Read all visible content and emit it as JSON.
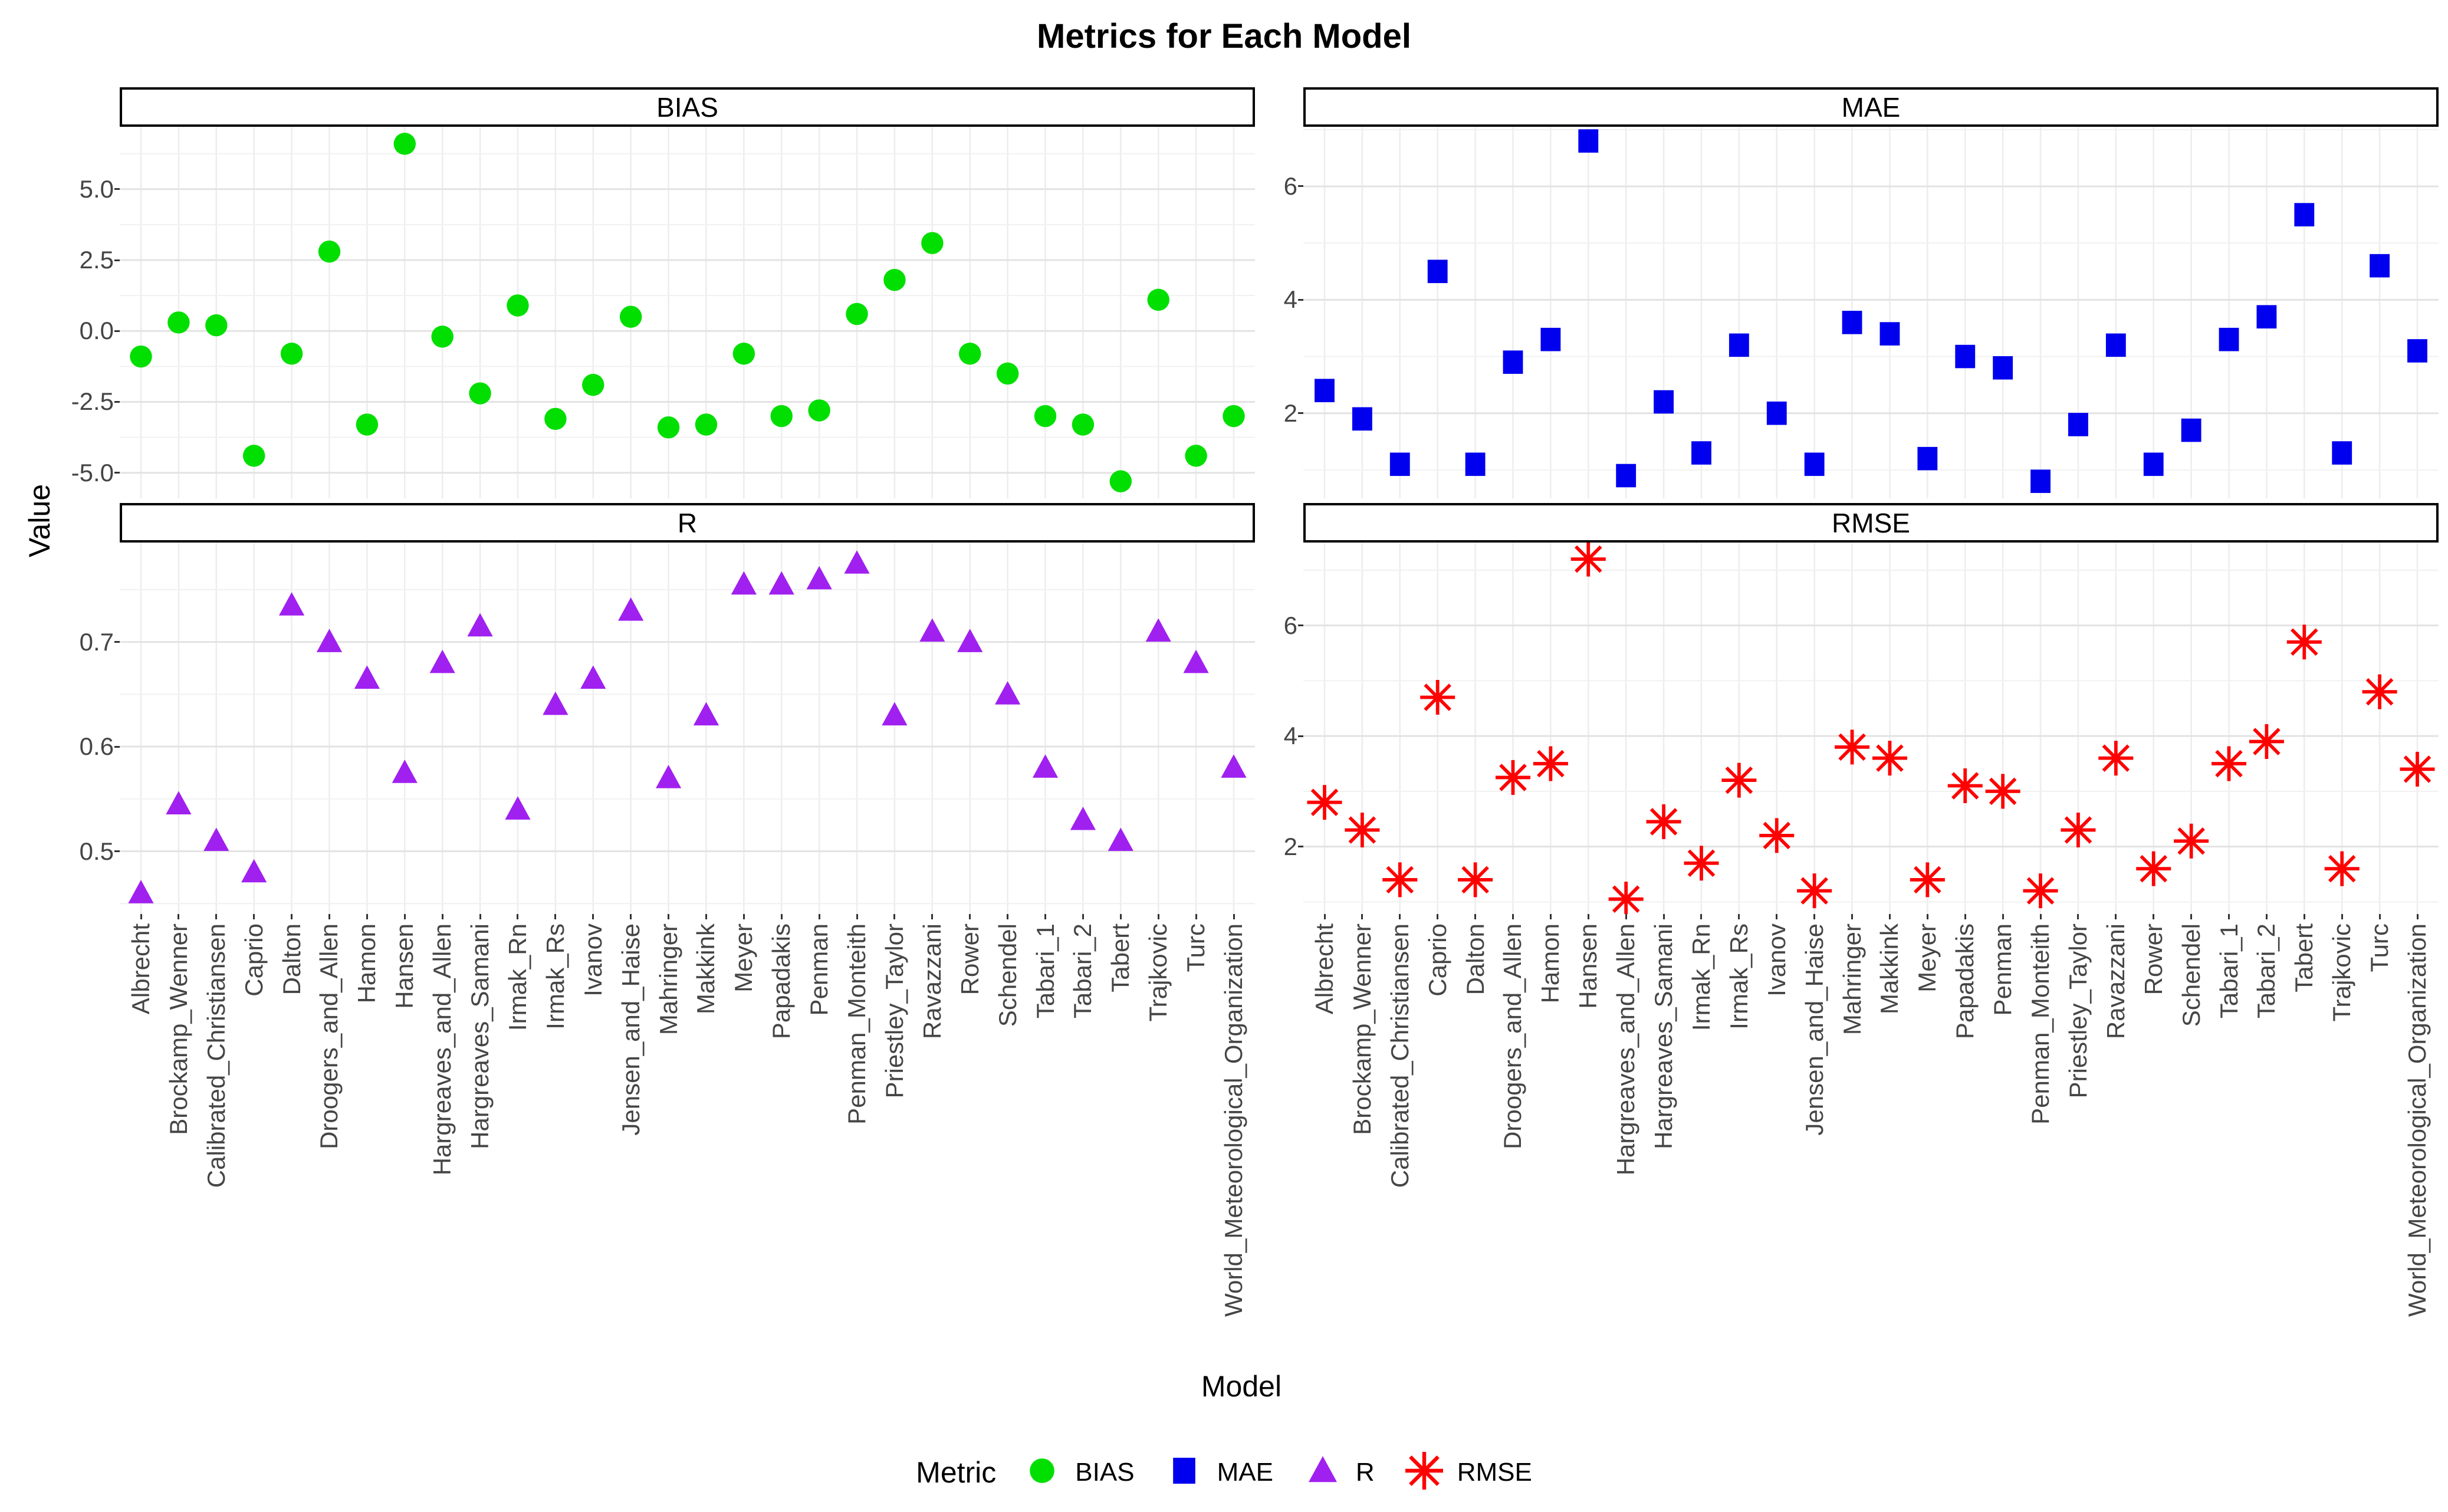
{
  "title": "Metrics for Each Model",
  "axis_titles": {
    "x": "Model",
    "y": "Value"
  },
  "legend": {
    "title": "Metric",
    "items": [
      {
        "label": "BIAS",
        "marker": "circle",
        "color": "#00DF00"
      },
      {
        "label": "MAE",
        "marker": "square",
        "color": "#0000EE"
      },
      {
        "label": "R",
        "marker": "triangle",
        "color": "#A020F0"
      },
      {
        "label": "RMSE",
        "marker": "asterisk",
        "color": "#FF0000"
      }
    ]
  },
  "chart_data": {
    "type": "scatter",
    "facet_layout": "2x2",
    "grid": "on",
    "legend_position": "bottom",
    "xlabel": "Model",
    "ylabel": "Value",
    "categories": [
      "Albrecht",
      "Brockamp_Wenner",
      "Calibrated_Christiansen",
      "Caprio",
      "Dalton",
      "Droogers_and_Allen",
      "Hamon",
      "Hansen",
      "Hargreaves_and_Allen",
      "Hargreaves_Samani",
      "Irmak_Rn",
      "Irmak_Rs",
      "Ivanov",
      "Jensen_and_Haise",
      "Mahringer",
      "Makkink",
      "Meyer",
      "Papadakis",
      "Penman",
      "Penman_Monteith",
      "Priestley_Taylor",
      "Ravazzani",
      "Rower",
      "Schendel",
      "Tabari_1",
      "Tabari_2",
      "Tabert",
      "Trajkovic",
      "Turc",
      "World_Meteorological_Organization"
    ],
    "panels": [
      {
        "name": "BIAS",
        "marker": "circle",
        "color": "#00DF00",
        "ylim": [
          -5.9,
          7.2
        ],
        "yticks": [
          {
            "v": 5.0,
            "label": "5.0"
          },
          {
            "v": 2.5,
            "label": "2.5"
          },
          {
            "v": 0.0,
            "label": "0.0"
          },
          {
            "v": -2.5,
            "label": "-2.5"
          },
          {
            "v": -5.0,
            "label": "-5.0"
          }
        ],
        "yminor": [
          6.25,
          3.75,
          1.25,
          -1.25,
          -3.75
        ],
        "values": [
          -0.9,
          0.3,
          0.2,
          -4.4,
          -0.8,
          2.8,
          -3.3,
          6.6,
          -0.2,
          -2.2,
          0.9,
          -3.1,
          -1.9,
          0.5,
          -3.4,
          -3.3,
          -0.8,
          -3.0,
          -2.8,
          0.6,
          1.8,
          3.1,
          -0.8,
          -1.5,
          -3.0,
          -3.3,
          -5.3,
          1.1,
          -4.4,
          -3.0
        ]
      },
      {
        "name": "MAE",
        "marker": "square",
        "color": "#0000EE",
        "ylim": [
          0.5,
          7.05
        ],
        "yticks": [
          {
            "v": 6,
            "label": "6"
          },
          {
            "v": 4,
            "label": "4"
          },
          {
            "v": 2,
            "label": "2"
          }
        ],
        "yminor": [
          7,
          5,
          3,
          1
        ],
        "values": [
          2.4,
          1.9,
          1.1,
          4.5,
          1.1,
          2.9,
          3.3,
          6.8,
          0.9,
          2.2,
          1.3,
          3.2,
          2.0,
          1.1,
          3.6,
          3.4,
          1.2,
          3.0,
          2.8,
          0.8,
          1.8,
          3.2,
          1.1,
          1.7,
          3.3,
          3.7,
          5.5,
          1.3,
          4.6,
          3.1
        ]
      },
      {
        "name": "R",
        "marker": "triangle",
        "color": "#A020F0",
        "ylim": [
          0.44,
          0.795
        ],
        "yticks": [
          {
            "v": 0.7,
            "label": "0.7"
          },
          {
            "v": 0.6,
            "label": "0.6"
          },
          {
            "v": 0.5,
            "label": "0.5"
          }
        ],
        "yminor": [
          0.75,
          0.65,
          0.55,
          0.45
        ],
        "values": [
          0.46,
          0.545,
          0.51,
          0.48,
          0.735,
          0.7,
          0.665,
          0.575,
          0.68,
          0.715,
          0.54,
          0.64,
          0.665,
          0.73,
          0.57,
          0.63,
          0.755,
          0.755,
          0.76,
          0.775,
          0.63,
          0.71,
          0.7,
          0.65,
          0.58,
          0.53,
          0.51,
          0.71,
          0.68,
          0.58
        ]
      },
      {
        "name": "RMSE",
        "marker": "asterisk",
        "color": "#FF0000",
        "ylim": [
          0.78,
          7.5
        ],
        "yticks": [
          {
            "v": 6,
            "label": "6"
          },
          {
            "v": 4,
            "label": "4"
          },
          {
            "v": 2,
            "label": "2"
          }
        ],
        "yminor": [
          7,
          5,
          3,
          1
        ],
        "values": [
          2.8,
          2.3,
          1.4,
          4.7,
          1.4,
          3.25,
          3.5,
          7.2,
          1.05,
          2.45,
          1.7,
          3.2,
          2.2,
          1.2,
          3.8,
          3.6,
          1.4,
          3.1,
          3.0,
          1.2,
          2.3,
          3.6,
          1.6,
          2.1,
          3.5,
          3.9,
          5.7,
          1.6,
          4.8,
          3.4
        ]
      }
    ]
  }
}
